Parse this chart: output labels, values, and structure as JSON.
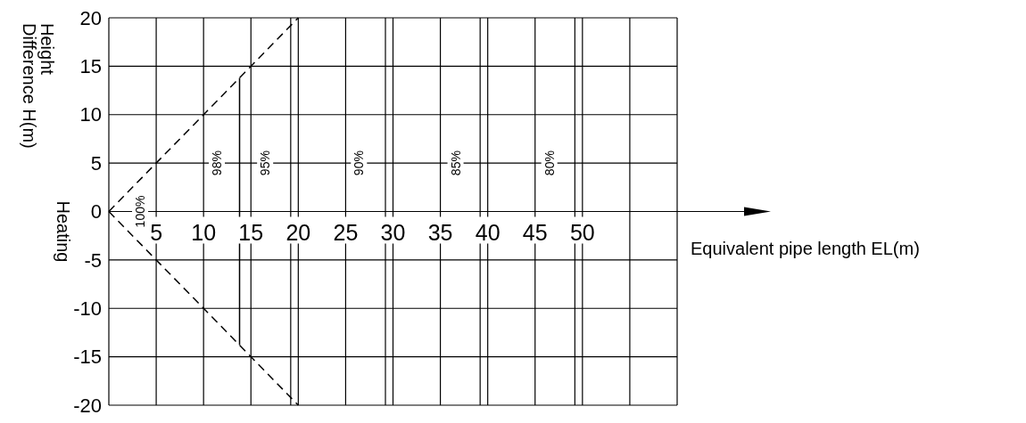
{
  "chart_data": {
    "type": "line",
    "xlabel": "Equivalent pipe length EL(m)",
    "ylabel": "Height Difference H(m)",
    "xlim": [
      0,
      60
    ],
    "ylim": [
      -20,
      20
    ],
    "xticks": [
      {
        "value": 0,
        "label": null
      },
      5,
      10,
      15,
      20,
      25,
      30,
      35,
      40,
      45,
      50,
      {
        "value": 55,
        "label": null
      },
      {
        "value": 60,
        "label": null
      }
    ],
    "yticks": [
      20,
      15,
      10,
      5,
      0,
      -5,
      -10,
      -15,
      -20
    ],
    "grid": true,
    "line_style": "dashed",
    "marker": "none",
    "series": [
      {
        "color": "#000000",
        "x": [
          0,
          20
        ],
        "values": [
          0,
          20
        ]
      },
      {
        "color": "#000000",
        "x": [
          0,
          20
        ],
        "values": [
          0,
          -20
        ]
      },
      {
        "color": "#000000",
        "x": [
          13.8,
          13.8
        ],
        "values": [
          13.8,
          -13.8
        ],
        "line_style": "solid"
      }
    ],
    "ref_lines": [
      {
        "axis": "x",
        "value": 19.2,
        "color": "#000000"
      },
      {
        "axis": "x",
        "value": 29.2,
        "color": "#000000"
      },
      {
        "axis": "x",
        "value": 39.2,
        "color": "#000000"
      },
      {
        "axis": "x",
        "value": 49.2,
        "color": "#000000"
      }
    ],
    "annotations": [
      "Heating",
      "100%",
      "98%",
      "95%",
      "90%",
      "85%",
      "80%"
    ]
  }
}
